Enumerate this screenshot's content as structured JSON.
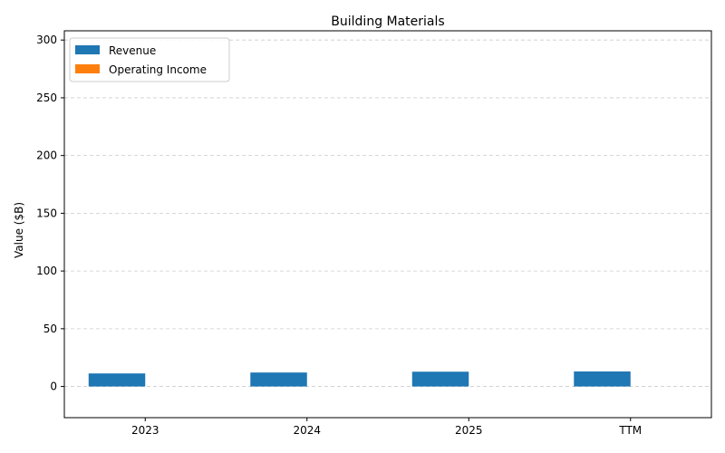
{
  "chart_data": {
    "type": "bar",
    "title": "Building Materials",
    "xlabel": "",
    "ylabel": "Value ($B)",
    "categories": [
      "2023",
      "2024",
      "2025",
      "TTM"
    ],
    "series": [
      {
        "name": "Revenue",
        "values": [
          11.3,
          12.1,
          12.8,
          13.0
        ],
        "color": "#1f77b4"
      },
      {
        "name": "Operating Income",
        "values": [
          0,
          0,
          0,
          0
        ],
        "color": "#ff7f0e"
      }
    ],
    "ylim": [
      -27,
      308
    ],
    "yticks": [
      0,
      50,
      100,
      150,
      200,
      250,
      300
    ],
    "grid": "y-dashed",
    "legend_position": "top-left"
  }
}
